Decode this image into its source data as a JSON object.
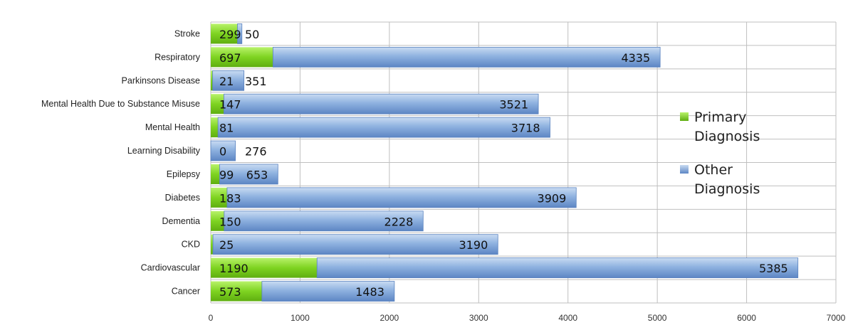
{
  "chart_data": {
    "type": "bar",
    "orientation": "horizontal",
    "stacked": true,
    "categories": [
      "Stroke",
      "Respiratory",
      "Parkinsons Disease",
      "Mental Health Due to Substance Misuse",
      "Mental Health",
      "Learning Disability",
      "Epilepsy",
      "Diabetes",
      "Dementia",
      "CKD",
      "Cardiovascular",
      "Cancer"
    ],
    "series": [
      {
        "name": "Primary Diagnosis",
        "values": [
          299,
          697,
          21,
          147,
          81,
          0,
          99,
          183,
          150,
          25,
          1190,
          573
        ],
        "color": "#7ed321"
      },
      {
        "name": "Other Diagnosis",
        "values": [
          50,
          4335,
          351,
          3521,
          3718,
          276,
          653,
          3909,
          2228,
          3190,
          5385,
          1483
        ],
        "color": "#7aa3d8"
      }
    ],
    "xlim": [
      0,
      7000
    ],
    "xticks": [
      0,
      1000,
      2000,
      3000,
      4000,
      5000,
      6000,
      7000
    ],
    "grid": true,
    "legend_position": "right"
  }
}
